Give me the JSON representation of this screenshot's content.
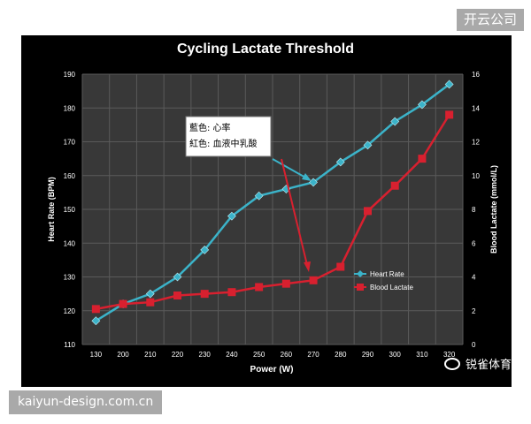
{
  "watermarks": {
    "top_right": "开云公司",
    "bottom_left": "kaiyun-design.com.cn",
    "logo_text": "锐雀体育"
  },
  "annotation": {
    "line1": "藍色: 心率",
    "line2": "紅色: 血液中乳酸"
  },
  "chart_data": {
    "type": "line",
    "title": "Cycling Lactate Threshold",
    "xlabel": "Power (W)",
    "ylabel_left": "Heart Rate (BPM)",
    "ylabel_right": "Blood Lactate (mmol/L)",
    "categories": [
      130,
      200,
      210,
      220,
      230,
      240,
      250,
      260,
      270,
      280,
      290,
      300,
      310,
      320
    ],
    "ylim_left": [
      110,
      190
    ],
    "yticks_left": [
      110,
      120,
      130,
      140,
      150,
      160,
      170,
      180,
      190
    ],
    "ylim_right": [
      0,
      16
    ],
    "yticks_right": [
      0,
      2,
      4,
      6,
      8,
      10,
      12,
      14,
      16
    ],
    "grid": true,
    "legend_position": "lower-right-inside",
    "colors": {
      "background": "#000000",
      "plot": "#383838",
      "grid": "#5a5a5a",
      "heart_rate": "#3bb3c9",
      "lactate": "#d8202f",
      "text": "#ffffff"
    },
    "series": [
      {
        "name": "Heart Rate",
        "axis": "left",
        "marker": "diamond",
        "values": [
          117,
          122,
          125,
          130,
          138,
          148,
          154,
          156,
          158,
          164,
          169,
          176,
          181,
          187
        ]
      },
      {
        "name": "Blood Lactate",
        "axis": "right",
        "marker": "square",
        "values": [
          2.1,
          2.4,
          2.5,
          2.9,
          3.0,
          3.1,
          3.4,
          3.6,
          3.8,
          4.6,
          7.9,
          9.4,
          11.0,
          13.6
        ]
      }
    ]
  }
}
